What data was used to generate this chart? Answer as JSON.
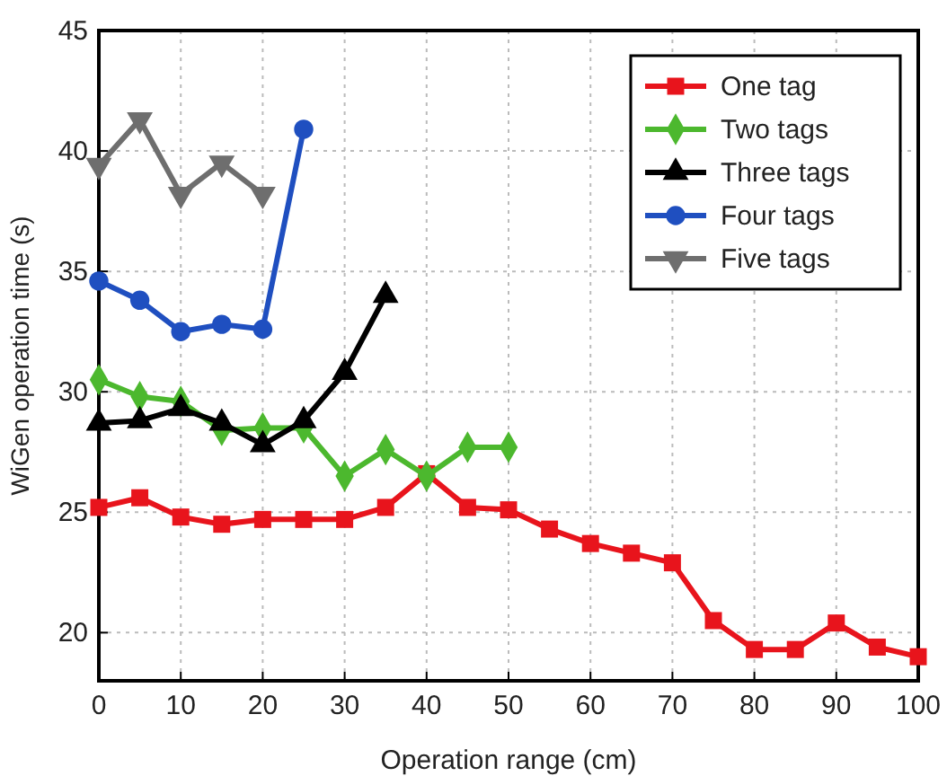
{
  "chart_data": {
    "type": "line",
    "xlabel": "Operation range (cm)",
    "ylabel": "WiGen operation time (s)",
    "xlim": [
      0,
      100
    ],
    "xticks": [
      0,
      10,
      20,
      30,
      40,
      50,
      60,
      70,
      80,
      90,
      100
    ],
    "ylim": [
      18,
      45
    ],
    "yticks": [
      20,
      25,
      30,
      35,
      40,
      45
    ],
    "grid": true,
    "legend": "top right",
    "line_style": "solid",
    "series": [
      {
        "name": "One tag",
        "color": "#e8141c",
        "marker": "square",
        "x": [
          0,
          5,
          10,
          15,
          20,
          25,
          30,
          35,
          40,
          45,
          50,
          55,
          60,
          65,
          70,
          75,
          80,
          85,
          90,
          95,
          100
        ],
        "values": [
          25.2,
          25.6,
          24.8,
          24.5,
          24.7,
          24.7,
          24.7,
          25.2,
          26.6,
          25.2,
          25.1,
          24.3,
          23.7,
          23.3,
          22.9,
          20.5,
          19.3,
          19.3,
          20.4,
          19.4,
          19.0
        ]
      },
      {
        "name": "Two tags",
        "color": "#4cb82e",
        "marker": "diamond",
        "x": [
          0,
          5,
          10,
          15,
          20,
          25,
          30,
          35,
          40,
          45,
          50
        ],
        "values": [
          30.5,
          29.8,
          29.6,
          28.4,
          28.5,
          28.5,
          26.5,
          27.6,
          26.5,
          27.7,
          27.7
        ]
      },
      {
        "name": "Three tags",
        "color": "#000000",
        "marker": "triangle",
        "x": [
          0,
          5,
          10,
          15,
          20,
          25,
          30,
          35
        ],
        "values": [
          28.7,
          28.8,
          29.3,
          28.7,
          27.8,
          28.8,
          30.8,
          34.0
        ]
      },
      {
        "name": "Four tags",
        "color": "#1f4fc0",
        "marker": "circle",
        "x": [
          0,
          5,
          10,
          15,
          20,
          25
        ],
        "values": [
          34.6,
          33.8,
          32.5,
          32.8,
          32.6,
          40.9
        ]
      },
      {
        "name": "Five tags",
        "color": "#6e6e6e",
        "marker": "triangle-down",
        "x": [
          0,
          5,
          10,
          15,
          20
        ],
        "values": [
          39.4,
          41.3,
          38.2,
          39.5,
          38.2
        ]
      }
    ]
  }
}
